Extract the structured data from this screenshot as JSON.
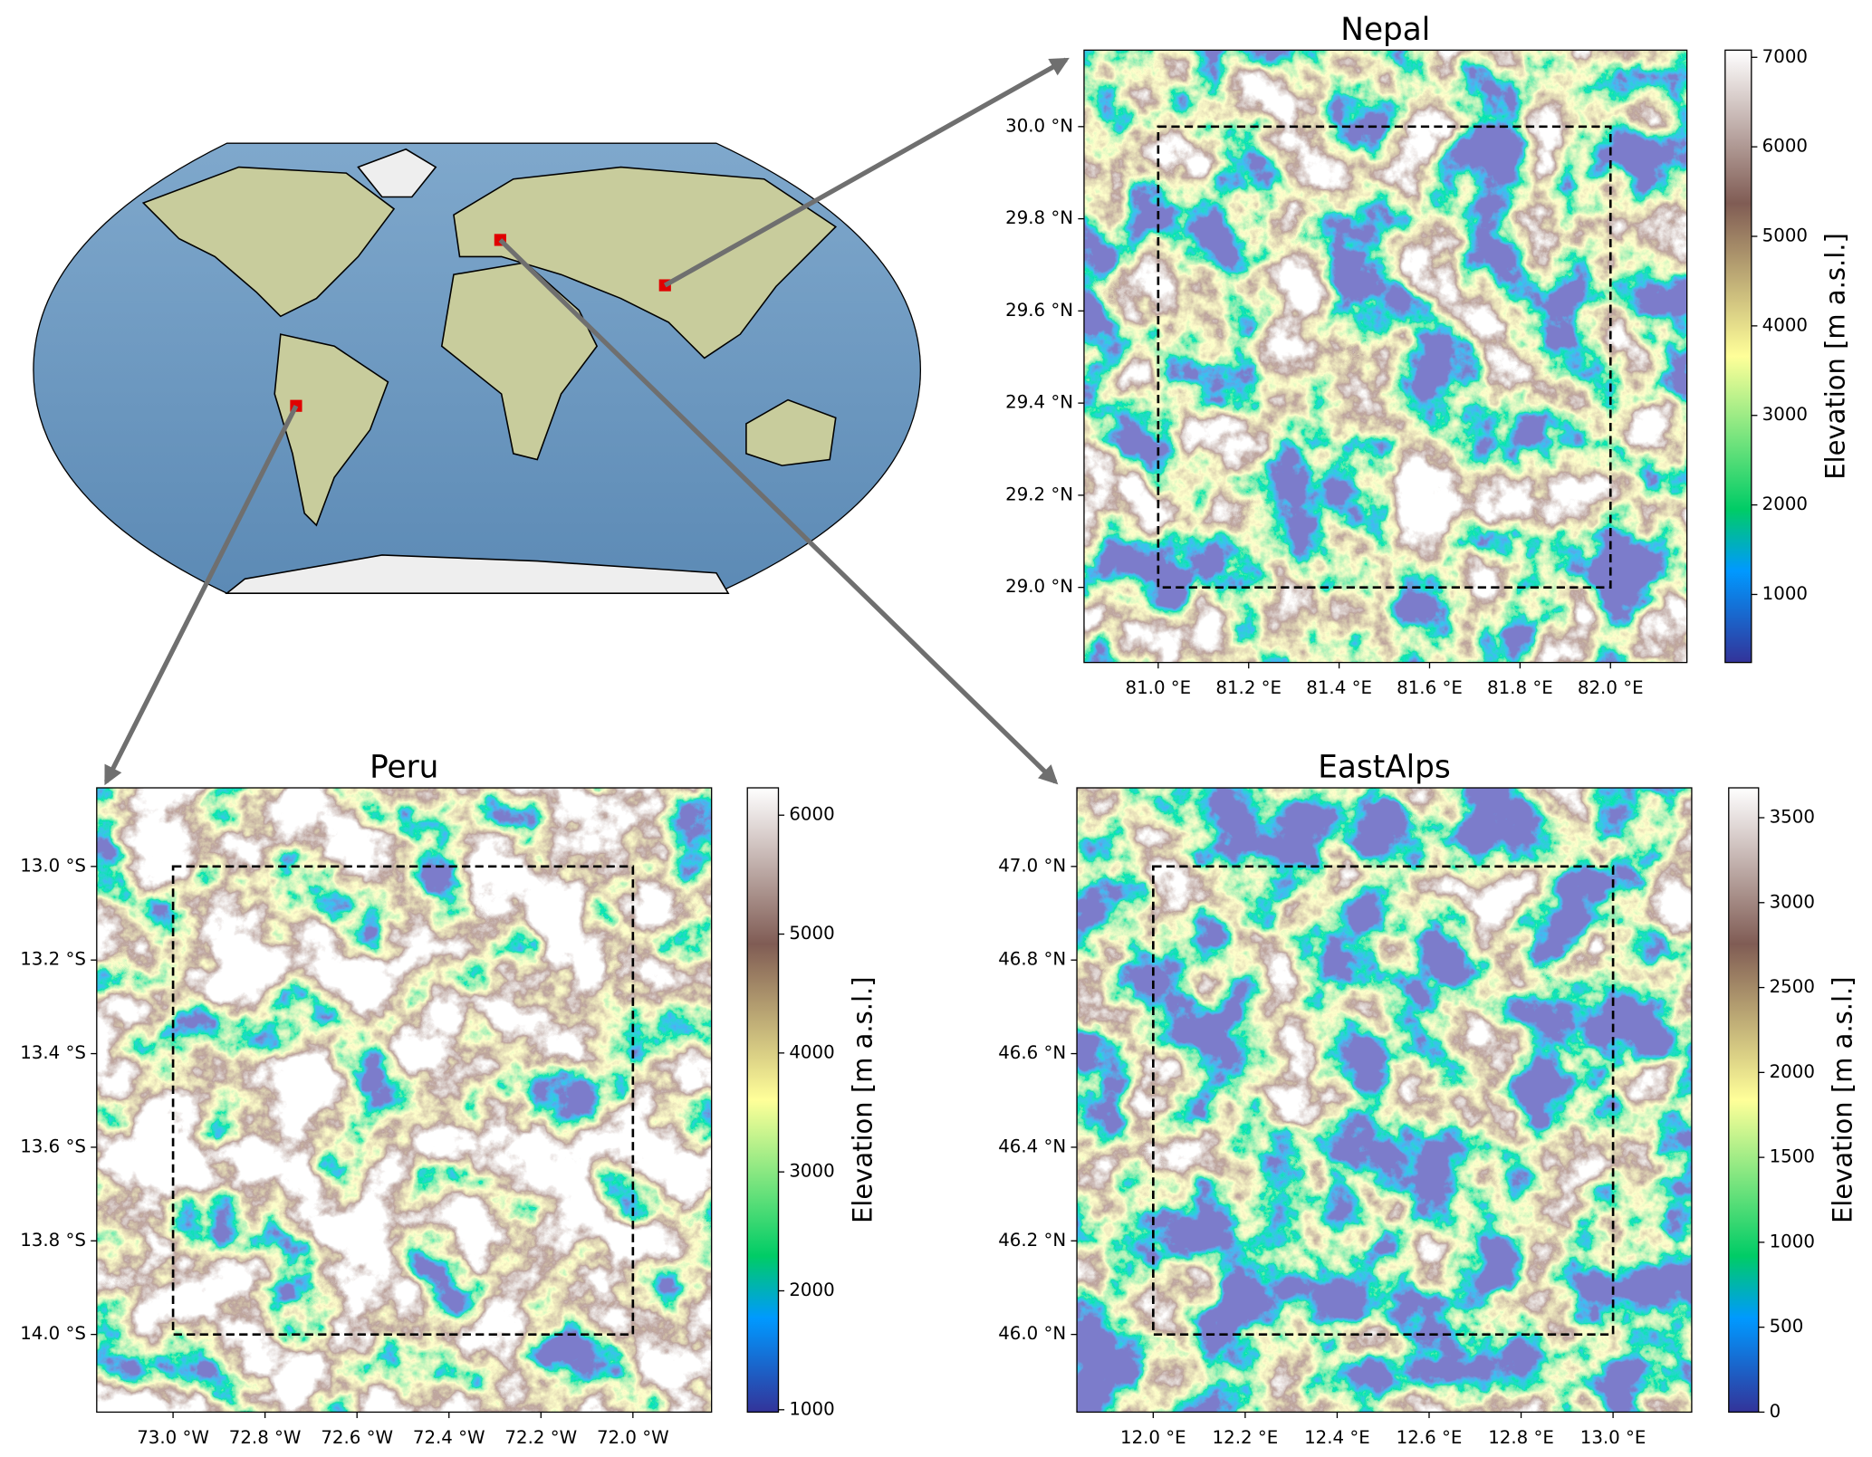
{
  "chart_data": [
    {
      "type": "heatmap",
      "title": "Nepal",
      "xlim": [
        80.836,
        82.169
      ],
      "ylim": [
        28.837,
        30.166
      ],
      "xticks": [
        {
          "value": 81.0,
          "label": "81.0 °E"
        },
        {
          "value": 81.2,
          "label": "81.2 °E"
        },
        {
          "value": 81.4,
          "label": "81.4 °E"
        },
        {
          "value": 81.6,
          "label": "81.6 °E"
        },
        {
          "value": 81.8,
          "label": "81.8 °E"
        },
        {
          "value": 82.0,
          "label": "82.0 °E"
        }
      ],
      "yticks": [
        {
          "value": 29.0,
          "label": "29.0 °N"
        },
        {
          "value": 29.2,
          "label": "29.2 °N"
        },
        {
          "value": 29.4,
          "label": "29.4 °N"
        },
        {
          "value": 29.6,
          "label": "29.6 °N"
        },
        {
          "value": 29.8,
          "label": "29.8 °N"
        },
        {
          "value": 30.0,
          "label": "30.0 °N"
        }
      ],
      "colorbar_label": "Elevation [m a.s.l.]",
      "clim": [
        240,
        7080
      ],
      "cticks": [
        1000,
        2000,
        3000,
        4000,
        5000,
        6000,
        7000
      ]
    },
    {
      "type": "heatmap",
      "title": "Peru",
      "xlim": [
        -73.166,
        -71.829
      ],
      "ylim": [
        -14.166,
        -12.832
      ],
      "xticks": [
        {
          "value": -73.0,
          "label": "73.0 °W"
        },
        {
          "value": -72.8,
          "label": "72.8 °W"
        },
        {
          "value": -72.6,
          "label": "72.6 °W"
        },
        {
          "value": -72.4,
          "label": "72.4 °W"
        },
        {
          "value": -72.2,
          "label": "72.2 °W"
        },
        {
          "value": -72.0,
          "label": "72.0 °W"
        }
      ],
      "yticks": [
        {
          "value": -14.0,
          "label": "14.0 °S"
        },
        {
          "value": -13.8,
          "label": "13.8 °S"
        },
        {
          "value": -13.6,
          "label": "13.6 °S"
        },
        {
          "value": -13.4,
          "label": "13.4 °S"
        },
        {
          "value": -13.2,
          "label": "13.2 °S"
        },
        {
          "value": -13.0,
          "label": "13.0 °S"
        }
      ],
      "colorbar_label": "Elevation [m a.s.l.]",
      "clim": [
        980,
        6230
      ],
      "cticks": [
        1000,
        2000,
        3000,
        4000,
        5000,
        6000
      ]
    },
    {
      "type": "heatmap",
      "title": "EastAlps",
      "xlim": [
        11.834,
        13.171
      ],
      "ylim": [
        45.834,
        47.168
      ],
      "xticks": [
        {
          "value": 12.0,
          "label": "12.0 °E"
        },
        {
          "value": 12.2,
          "label": "12.2 °E"
        },
        {
          "value": 12.4,
          "label": "12.4 °E"
        },
        {
          "value": 12.6,
          "label": "12.6 °E"
        },
        {
          "value": 12.8,
          "label": "12.8 °E"
        },
        {
          "value": 13.0,
          "label": "13.0 °E"
        }
      ],
      "yticks": [
        {
          "value": 46.0,
          "label": "46.0 °N"
        },
        {
          "value": 46.2,
          "label": "46.2 °N"
        },
        {
          "value": 46.4,
          "label": "46.4 °N"
        },
        {
          "value": 46.6,
          "label": "46.6 °N"
        },
        {
          "value": 46.8,
          "label": "46.8 °N"
        },
        {
          "value": 47.0,
          "label": "47.0 °N"
        }
      ],
      "colorbar_label": "Elevation [m a.s.l.]",
      "clim": [
        0,
        3676
      ],
      "cticks": [
        0,
        500,
        1000,
        1500,
        2000,
        2500,
        3000,
        3500
      ]
    }
  ]
}
